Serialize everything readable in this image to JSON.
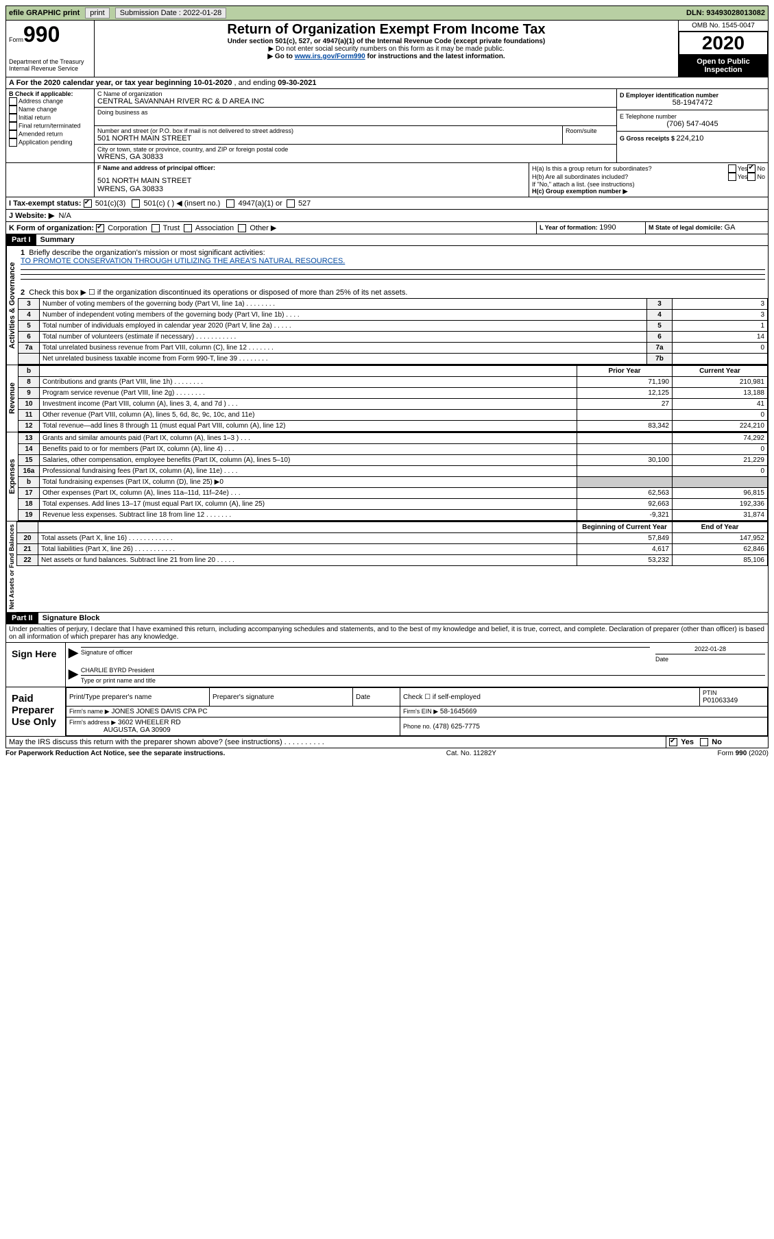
{
  "top": {
    "efile": "efile GRAPHIC print",
    "sub_label": "Submission Date : ",
    "sub_date": "2022-01-28",
    "dln": "DLN: 93493028013082"
  },
  "header": {
    "form_small": "Form",
    "form_num": "990",
    "dept": "Department of the Treasury",
    "irs": "Internal Revenue Service",
    "title": "Return of Organization Exempt From Income Tax",
    "sub1": "Under section 501(c), 527, or 4947(a)(1) of the Internal Revenue Code (except private foundations)",
    "sub2": "▶ Do not enter social security numbers on this form as it may be made public.",
    "sub3_a": "▶ Go to ",
    "sub3_link": "www.irs.gov/Form990",
    "sub3_b": " for instructions and the latest information.",
    "omb": "OMB No. 1545-0047",
    "year": "2020",
    "open": "Open to Public Inspection"
  },
  "a_line": {
    "prefix": "A For the 2020 calendar year, or tax year beginning ",
    "begin": "10-01-2020",
    "mid": " , and ending ",
    "end": "09-30-2021"
  },
  "b": {
    "label": "B Check if applicable:",
    "addr": "Address change",
    "name": "Name change",
    "initial": "Initial return",
    "final": "Final return/terminated",
    "amended": "Amended return",
    "app": "Application pending"
  },
  "c": {
    "name_label": "C Name of organization",
    "name": "CENTRAL SAVANNAH RIVER RC & D AREA INC",
    "dba": "Doing business as",
    "street_label": "Number and street (or P.O. box if mail is not delivered to street address)",
    "room": "Room/suite",
    "street": "501 NORTH MAIN STREET",
    "city_label": "City or town, state or province, country, and ZIP or foreign postal code",
    "city": "WRENS, GA  30833"
  },
  "d": {
    "label": "D Employer identification number",
    "val": "58-1947472"
  },
  "e": {
    "label": "E Telephone number",
    "val": "(706) 547-4045"
  },
  "g": {
    "label": "G Gross receipts $ ",
    "val": "224,210"
  },
  "f": {
    "label": "F Name and address of principal officer:",
    "l1": "501 NORTH MAIN STREET",
    "l2": "WRENS, GA  30833"
  },
  "h": {
    "a": "H(a)  Is this a group return for subordinates?",
    "b": "H(b)  Are all subordinates included?",
    "note": "If \"No,\" attach a list. (see instructions)",
    "c": "H(c)  Group exemption number ▶",
    "yes": "Yes",
    "no": "No"
  },
  "i": {
    "label": "I  Tax-exempt status:",
    "c3": "501(c)(3)",
    "c": "501(c) (  ) ◀ (insert no.)",
    "a1": "4947(a)(1) or",
    "s527": "527"
  },
  "j": {
    "label": "J  Website: ▶",
    "val": "N/A"
  },
  "k": {
    "label": "K Form of organization:",
    "corp": "Corporation",
    "trust": "Trust",
    "assoc": "Association",
    "other": "Other ▶"
  },
  "l": {
    "label": "L Year of formation: ",
    "val": "1990"
  },
  "m": {
    "label": "M State of legal domicile: ",
    "val": "GA"
  },
  "part1": {
    "tag": "Part I",
    "title": "Summary"
  },
  "sideActivities": "Activities & Governance",
  "sideRevenue": "Revenue",
  "sideExpenses": "Expenses",
  "sideNet": "Net Assets or Fund Balances",
  "summary": {
    "l1a": "1",
    "l1": "Briefly describe the organization's mission or most significant activities:",
    "mission": "TO PROMOTE CONSERVATION THROUGH UTILIZING THE AREA'S NATURAL RESOURCES.",
    "l2n": "2",
    "l2": "Check this box ▶ ☐  if the organization discontinued its operations or disposed of more than 25% of its net assets.",
    "rows": [
      {
        "n": "3",
        "d": "Number of voting members of the governing body (Part VI, line 1a)   .   .   .   .   .   .   .   .",
        "b": "3",
        "v": "3"
      },
      {
        "n": "4",
        "d": "Number of independent voting members of the governing body (Part VI, line 1b)   .   .   .   .",
        "b": "4",
        "v": "3"
      },
      {
        "n": "5",
        "d": "Total number of individuals employed in calendar year 2020 (Part V, line 2a)   .   .   .   .   .",
        "b": "5",
        "v": "1"
      },
      {
        "n": "6",
        "d": "Total number of volunteers (estimate if necessary)   .   .   .   .   .   .   .   .   .   .   .",
        "b": "6",
        "v": "14"
      },
      {
        "n": "7a",
        "d": "Total unrelated business revenue from Part VIII, column (C), line 12   .   .   .   .   .   .   .",
        "b": "7a",
        "v": "0"
      },
      {
        "n": "",
        "d": "Net unrelated business taxable income from Form 990-T, line 39   .   .   .   .   .   .   .   .",
        "b": "7b",
        "v": ""
      }
    ],
    "b_n": "b",
    "priorYear": "Prior Year",
    "currentYear": "Current Year",
    "rev": [
      {
        "n": "8",
        "d": "Contributions and grants (Part VIII, line 1h)   .   .   .   .   .   .   .   .",
        "p": "71,190",
        "c": "210,981"
      },
      {
        "n": "9",
        "d": "Program service revenue (Part VIII, line 2g)   .   .   .   .   .   .   .   .",
        "p": "12,125",
        "c": "13,188"
      },
      {
        "n": "10",
        "d": "Investment income (Part VIII, column (A), lines 3, 4, and 7d )   .   .   .",
        "p": "27",
        "c": "41"
      },
      {
        "n": "11",
        "d": "Other revenue (Part VIII, column (A), lines 5, 6d, 8c, 9c, 10c, and 11e)",
        "p": "",
        "c": "0"
      },
      {
        "n": "12",
        "d": "Total revenue—add lines 8 through 11 (must equal Part VIII, column (A), line 12)",
        "p": "83,342",
        "c": "224,210"
      }
    ],
    "exp": [
      {
        "n": "13",
        "d": "Grants and similar amounts paid (Part IX, column (A), lines 1–3 )   .   .   .",
        "p": "",
        "c": "74,292"
      },
      {
        "n": "14",
        "d": "Benefits paid to or for members (Part IX, column (A), line 4)   .   .   .",
        "p": "",
        "c": "0"
      },
      {
        "n": "15",
        "d": "Salaries, other compensation, employee benefits (Part IX, column (A), lines 5–10)",
        "p": "30,100",
        "c": "21,229"
      },
      {
        "n": "16a",
        "d": "Professional fundraising fees (Part IX, column (A), line 11e)   .   .   .   .",
        "p": "",
        "c": "0"
      },
      {
        "n": "b",
        "d": "Total fundraising expenses (Part IX, column (D), line 25) ▶0",
        "p": "grey",
        "c": "grey"
      },
      {
        "n": "17",
        "d": "Other expenses (Part IX, column (A), lines 11a–11d, 11f–24e)   .   .   .",
        "p": "62,563",
        "c": "96,815"
      },
      {
        "n": "18",
        "d": "Total expenses. Add lines 13–17 (must equal Part IX, column (A), line 25)",
        "p": "92,663",
        "c": "192,336"
      },
      {
        "n": "19",
        "d": "Revenue less expenses. Subtract line 18 from line 12   .   .   .   .   .   .   .",
        "p": "-9,321",
        "c": "31,874"
      }
    ],
    "begYear": "Beginning of Current Year",
    "endYear": "End of Year",
    "net": [
      {
        "n": "20",
        "d": "Total assets (Part X, line 16)   .   .   .   .   .   .   .   .   .   .   .   .",
        "p": "57,849",
        "c": "147,952"
      },
      {
        "n": "21",
        "d": "Total liabilities (Part X, line 26)   .   .   .   .   .   .   .   .   .   .   .",
        "p": "4,617",
        "c": "62,846"
      },
      {
        "n": "22",
        "d": "Net assets or fund balances. Subtract line 21 from line 20   .   .   .   .   .",
        "p": "53,232",
        "c": "85,106"
      }
    ]
  },
  "part2": {
    "tag": "Part II",
    "title": "Signature Block"
  },
  "penalties": "Under penalties of perjury, I declare that I have examined this return, including accompanying schedules and statements, and to the best of my knowledge and belief, it is true, correct, and complete. Declaration of preparer (other than officer) is based on all information of which preparer has any knowledge.",
  "sign": {
    "here": "Sign Here",
    "sigoff": "Signature of officer",
    "date": "Date",
    "dateval": "2022-01-28",
    "name": "CHARLIE BYRD  President",
    "type": "Type or print name and title"
  },
  "paid": {
    "left": "Paid Preparer Use Only",
    "print": "Print/Type preparer's name",
    "sig": "Preparer's signature",
    "date": "Date",
    "check": "Check ☐ if self-employed",
    "ptin_l": "PTIN",
    "ptin": "P01063349",
    "firm_l": "Firm's name    ▶",
    "firm": "JONES JONES DAVIS CPA PC",
    "ein_l": "Firm's EIN ▶",
    "ein": "58-1645669",
    "addr_l": "Firm's address ▶",
    "addr1": "3602 WHEELER RD",
    "addr2": "AUGUSTA, GA  30909",
    "phone_l": "Phone no. ",
    "phone": "(478) 625-7775",
    "discuss": "May the IRS discuss this return with the preparer shown above? (see instructions)   .   .   .   .   .   .   .   .   .   .",
    "yes": "Yes",
    "no": "No"
  },
  "footer": {
    "left": "For Paperwork Reduction Act Notice, see the separate instructions.",
    "mid": "Cat. No. 11282Y",
    "right": "Form 990 (2020)"
  }
}
